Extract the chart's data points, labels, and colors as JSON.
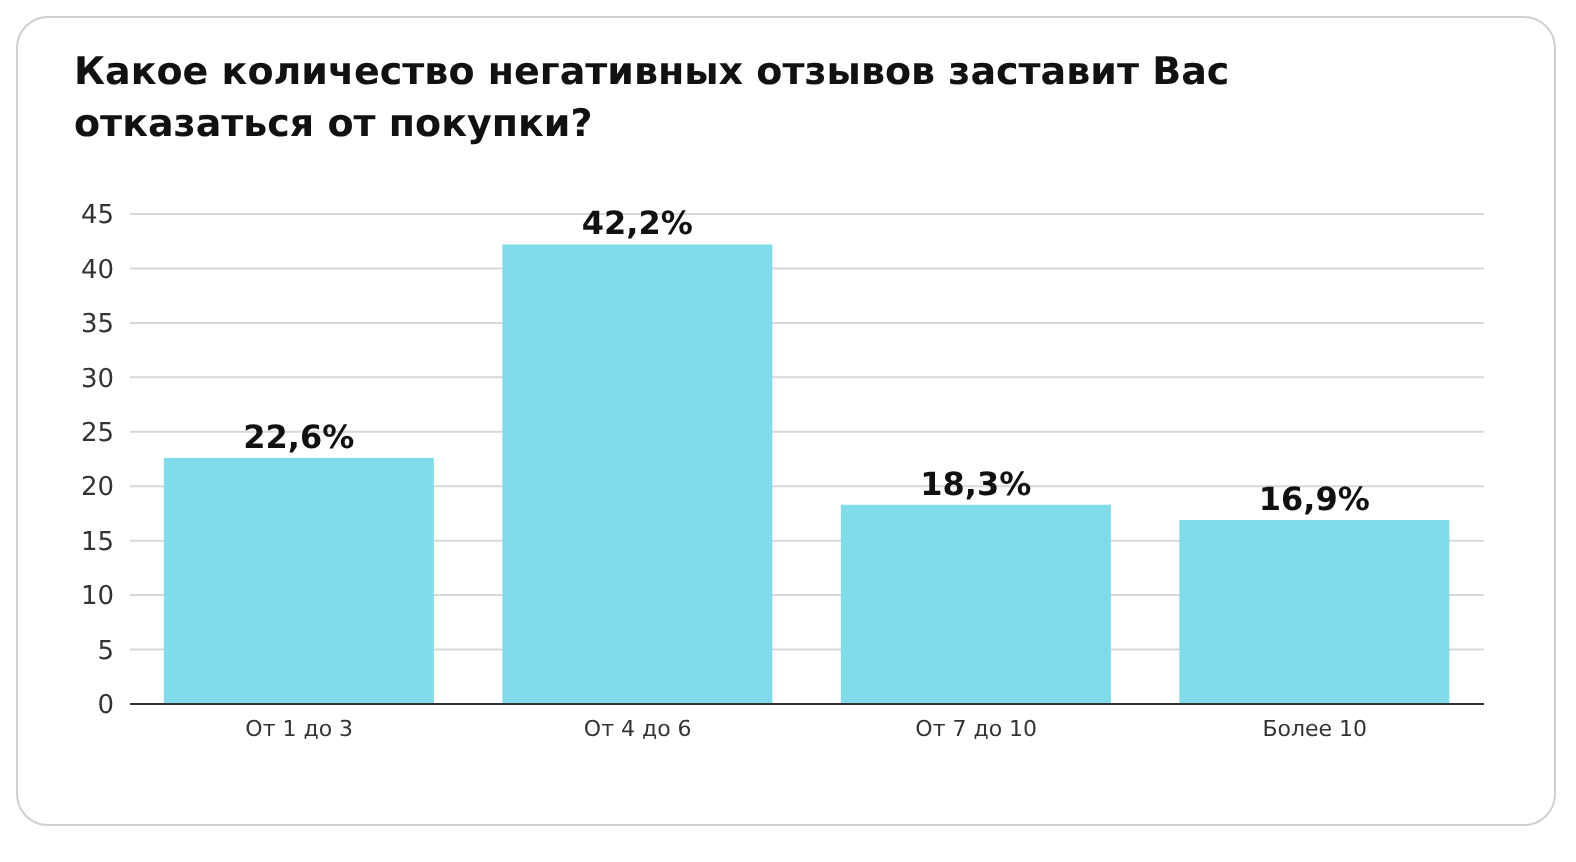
{
  "chart_data": {
    "type": "bar",
    "title": "Какое количество негативных отзывов заставит Вас отказаться от покупки?",
    "categories": [
      "От 1 до 3",
      "От 4 до 6",
      "От 7 до 10",
      "Более 10"
    ],
    "values": [
      22.6,
      42.2,
      18.3,
      16.9
    ],
    "value_labels": [
      "22,6%",
      "42,2%",
      "18,3%",
      "16,9%"
    ],
    "color": "#80dbea",
    "ylim": [
      0,
      45
    ],
    "yticks": [
      0,
      5,
      10,
      15,
      20,
      25,
      30,
      35,
      40,
      45
    ],
    "grid": "y",
    "legend": false
  }
}
